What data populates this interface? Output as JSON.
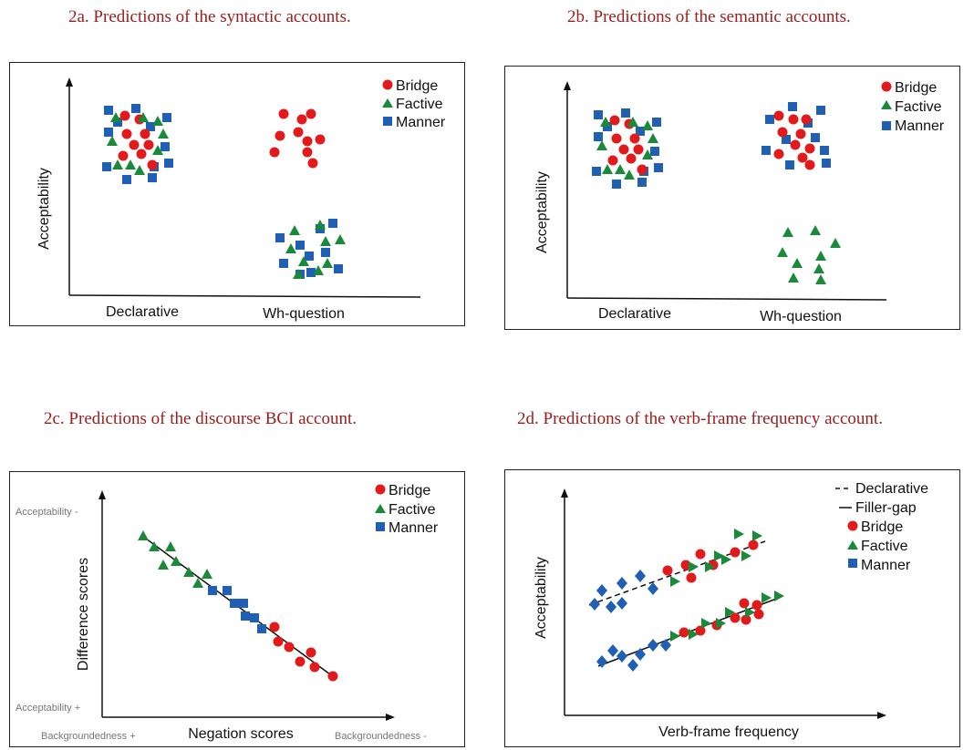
{
  "captions": {
    "a": "2a. Predictions of the syntactic accounts.",
    "b": "2b. Predictions of the semantic accounts.",
    "c": "2c. Predictions of the discourse BCI account.",
    "d": "2d. Predictions of the verb-frame frequency account."
  },
  "colors": {
    "bridge": "#e31a1c",
    "factive": "#1a8a3a",
    "manner": "#1f5fb4",
    "caption": "#9b1b1b"
  },
  "chart_data": [
    {
      "type": "scatter",
      "title": "2a. Predictions of the syntactic accounts.",
      "ylabel": "Acceptability",
      "categories": [
        "Declarative",
        "Wh-question"
      ],
      "legend": [
        "Bridge",
        "Factive",
        "Manner"
      ],
      "legend_position": "top-right",
      "grid": false,
      "ylim": [
        0,
        1
      ],
      "groups": [
        {
          "category": "Declarative",
          "series": "Bridge",
          "acceptability": "high"
        },
        {
          "category": "Declarative",
          "series": "Factive",
          "acceptability": "high"
        },
        {
          "category": "Declarative",
          "series": "Manner",
          "acceptability": "high"
        },
        {
          "category": "Wh-question",
          "series": "Bridge",
          "acceptability": "high"
        },
        {
          "category": "Wh-question",
          "series": "Factive",
          "acceptability": "low"
        },
        {
          "category": "Wh-question",
          "series": "Manner",
          "acceptability": "low"
        }
      ]
    },
    {
      "type": "scatter",
      "title": "2b. Predictions of the semantic accounts.",
      "ylabel": "Acceptability",
      "categories": [
        "Declarative",
        "Wh-question"
      ],
      "legend": [
        "Bridge",
        "Factive",
        "Manner"
      ],
      "legend_position": "top-right",
      "grid": false,
      "ylim": [
        0,
        1
      ],
      "groups": [
        {
          "category": "Declarative",
          "series": "Bridge",
          "acceptability": "high"
        },
        {
          "category": "Declarative",
          "series": "Factive",
          "acceptability": "high"
        },
        {
          "category": "Declarative",
          "series": "Manner",
          "acceptability": "high"
        },
        {
          "category": "Wh-question",
          "series": "Bridge",
          "acceptability": "high"
        },
        {
          "category": "Wh-question",
          "series": "Factive",
          "acceptability": "low"
        },
        {
          "category": "Wh-question",
          "series": "Manner",
          "acceptability": "high"
        }
      ]
    },
    {
      "type": "scatter",
      "title": "2c. Predictions of the discourse BCI account.",
      "xlabel": "Negation scores",
      "ylabel": "Difference scores",
      "x_tick_labels": [
        "Backgroundedness +",
        "Backgroundedness -"
      ],
      "y_tick_labels": [
        "Acceptability +",
        "Acceptability -"
      ],
      "legend": [
        "Bridge",
        "Factive",
        "Manner"
      ],
      "legend_position": "top-right",
      "grid": false,
      "trend": "negative linear",
      "order_along_line": [
        "Factive",
        "Manner",
        "Bridge"
      ]
    },
    {
      "type": "scatter",
      "title": "2d. Predictions of the verb-frame frequency account.",
      "xlabel": "Verb-frame frequency",
      "ylabel": "Acceptability",
      "legend": [
        "Declarative",
        "Filler-gap",
        "Bridge",
        "Factive",
        "Manner"
      ],
      "legend_position": "top-right",
      "grid": false,
      "lines": [
        {
          "name": "Declarative",
          "style": "dashed",
          "trend": "positive linear",
          "level": "higher"
        },
        {
          "name": "Filler-gap",
          "style": "solid",
          "trend": "positive linear",
          "level": "lower"
        }
      ],
      "order_along_line": [
        "Manner",
        "Factive/Bridge"
      ]
    }
  ]
}
